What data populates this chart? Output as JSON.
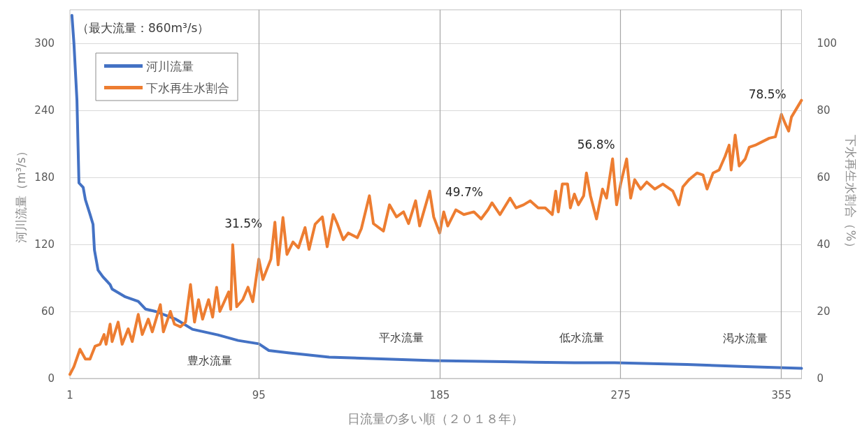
{
  "chart_data": {
    "type": "line",
    "xlabel": "日流量の多い順（２０１８年）",
    "ylabel": "河川流量（m³/s）",
    "y2label": "下水再生水割合（%）",
    "xlim": [
      1,
      365
    ],
    "xticks": [
      1,
      95,
      185,
      275,
      355
    ],
    "ylim": [
      0,
      330
    ],
    "yticks": [
      0,
      60,
      120,
      180,
      240,
      300
    ],
    "y2lim": [
      0,
      110
    ],
    "y2ticks": [
      0,
      20,
      40,
      60,
      80,
      100
    ],
    "grid": "y",
    "legend": "top left",
    "marker": "none",
    "line_style": "solid",
    "series": [
      {
        "name": "河川流量",
        "color": "#4472c4",
        "x": [
          2,
          3,
          4.5,
          5.5,
          7.6,
          8.7,
          11,
          12.5,
          13.2,
          15,
          17.4,
          21,
          22,
          28.6,
          35,
          38.7,
          43.6,
          53.7,
          62,
          74.6,
          84.7,
          95,
          100,
          109.5,
          130,
          182,
          217,
          252,
          272,
          308,
          337,
          365
        ],
        "values": [
          325,
          300,
          249,
          175,
          171,
          160,
          147,
          138,
          115,
          97,
          91,
          84,
          80,
          73,
          69,
          62,
          60,
          53,
          44,
          39,
          34,
          31,
          25,
          23,
          19,
          16,
          15,
          14,
          14,
          12.5,
          10.6,
          9
        ]
      },
      {
        "name": "下水再生水割合",
        "color": "#ed7d31",
        "axis": "y2",
        "x": [
          1,
          3,
          6,
          8.7,
          11,
          13.5,
          16,
          18,
          19,
          21,
          22,
          25,
          27,
          30,
          32,
          35,
          37,
          40,
          42,
          46,
          47.5,
          51,
          53,
          56,
          58.5,
          61,
          63,
          65,
          67,
          70,
          72,
          74,
          75.6,
          80,
          81,
          82,
          84,
          87,
          89.6,
          92,
          95,
          97,
          101,
          103,
          104.6,
          107,
          109,
          112,
          114.7,
          118,
          120,
          123,
          126.6,
          129,
          132,
          134,
          137,
          139.5,
          144,
          146,
          150,
          152,
          157,
          160,
          163.5,
          167,
          169.5,
          173,
          175,
          180,
          182,
          185,
          187,
          189,
          193,
          197,
          202,
          205.6,
          209,
          211,
          215,
          220,
          223,
          226.7,
          230,
          234,
          237.5,
          241,
          242.7,
          244,
          246,
          248.6,
          250,
          252,
          254,
          256.6,
          258,
          260,
          263,
          266,
          268,
          271,
          273,
          275,
          278,
          280,
          282,
          285,
          288,
          292,
          296,
          301,
          304,
          306,
          309,
          313,
          316,
          318,
          321,
          324,
          327,
          329,
          330,
          332,
          334,
          337,
          339,
          342,
          345,
          349,
          352,
          355,
          357,
          358.6,
          360,
          365
        ],
        "values": [
          1.2,
          3.5,
          8.7,
          5.8,
          5.8,
          9.6,
          10.2,
          13.1,
          10.2,
          16.2,
          11,
          16.8,
          10.2,
          14.8,
          11,
          19.1,
          13.1,
          17.7,
          13.9,
          22,
          13.9,
          20,
          16.2,
          15.4,
          16.8,
          28,
          16.8,
          23.5,
          17.7,
          23.5,
          18.3,
          27.2,
          20,
          25.8,
          20.6,
          39.9,
          21.4,
          23.5,
          27.2,
          22.9,
          35.6,
          29.5,
          35.6,
          46.6,
          33.9,
          48,
          37,
          40.7,
          39,
          45,
          38.5,
          46,
          48.2,
          39.3,
          48.9,
          46.2,
          41.4,
          43.4,
          42,
          44.7,
          54.5,
          46.2,
          44,
          51.8,
          48.2,
          49.7,
          46.2,
          53,
          45.5,
          55.9,
          48.2,
          43.4,
          49.7,
          45.5,
          50.3,
          48.9,
          49.7,
          47.6,
          50.3,
          52.4,
          48.9,
          53.8,
          50.9,
          51.8,
          53,
          50.9,
          50.9,
          48.9,
          55.9,
          49.7,
          58,
          58,
          50.9,
          55,
          51.8,
          54.5,
          61.3,
          54.5,
          47.6,
          56.5,
          53.8,
          65.5,
          51.8,
          58,
          65.5,
          53.8,
          59.3,
          56.5,
          58.6,
          56.5,
          58,
          55.9,
          51.8,
          57.2,
          59.3,
          61.3,
          60.7,
          56.5,
          61.3,
          62.2,
          66.3,
          69.6,
          62.2,
          72.6,
          63.4,
          65.5,
          69,
          69.6,
          70.5,
          71.7,
          72.1,
          78.8,
          75.9,
          73.8,
          78,
          83
        ]
      }
    ],
    "ref_lines": [
      {
        "axis": "x",
        "value": 95,
        "label": "豊水流量",
        "color": "#a6a6a6"
      },
      {
        "axis": "x",
        "value": 185,
        "label": "平水流量",
        "color": "#a6a6a6"
      },
      {
        "axis": "x",
        "value": 275,
        "label": "低水流量",
        "color": "#a6a6a6"
      },
      {
        "axis": "x",
        "value": 355,
        "label": "渇水流量",
        "color": "#a6a6a6"
      }
    ],
    "annotations": [
      "（最大流量：860m³/s）",
      "31.5%",
      "49.7%",
      "56.8%",
      "78.5%"
    ]
  }
}
